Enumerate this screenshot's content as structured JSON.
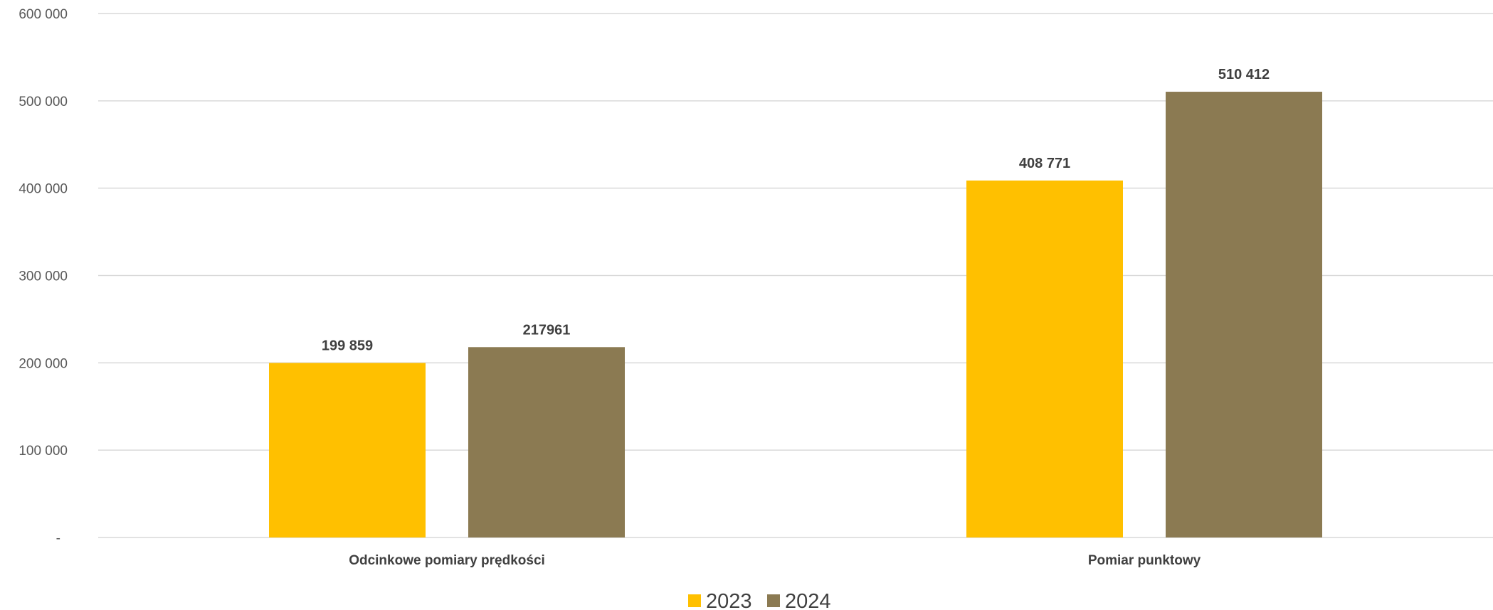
{
  "chart_data": {
    "type": "bar",
    "categories": [
      "Odcinkowe pomiary prędkości",
      "Pomiar punktowy"
    ],
    "series": [
      {
        "name": "2023",
        "color": "#FFC000",
        "values": [
          199859,
          408771
        ],
        "labels": [
          "199 859",
          "408 771"
        ]
      },
      {
        "name": "2024",
        "color": "#8B7A52",
        "values": [
          217961,
          510412
        ],
        "labels": [
          "217961",
          "510 412"
        ]
      }
    ],
    "ylim": [
      0,
      600000
    ],
    "yticks": [
      0,
      100000,
      200000,
      300000,
      400000,
      500000,
      600000
    ],
    "ytick_labels": [
      "-",
      "100 000",
      "200 000",
      "300 000",
      "400 000",
      "500 000",
      "600 000"
    ],
    "grid": true,
    "legend": "bottom",
    "title": "",
    "xlabel": "",
    "ylabel": ""
  }
}
